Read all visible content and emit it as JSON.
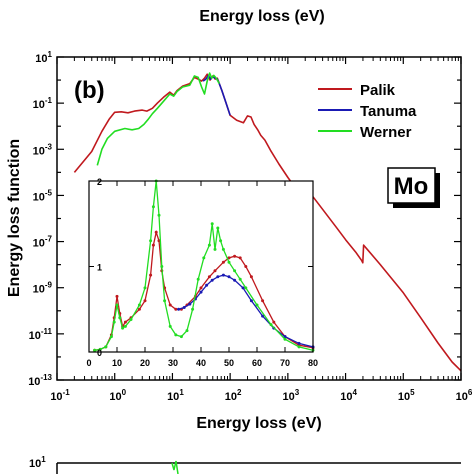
{
  "top_fragment": {
    "xlabel": "Energy loss (eV)"
  },
  "chart_data": {
    "type": "line",
    "title": "",
    "panel_label": "(b)",
    "element_label": "Mo",
    "xlabel": "Energy loss (eV)",
    "ylabel": "Energy loss function",
    "xscale": "log",
    "yscale": "log",
    "xlim": [
      0.1,
      1000000
    ],
    "ylim": [
      1e-13,
      10
    ],
    "x_ticks": [
      {
        "value": 0.1,
        "base": "10",
        "exp": "-1"
      },
      {
        "value": 1,
        "base": "10",
        "exp": "0"
      },
      {
        "value": 10,
        "base": "10",
        "exp": "1"
      },
      {
        "value": 100,
        "base": "10",
        "exp": "2"
      },
      {
        "value": 1000,
        "base": "10",
        "exp": "3"
      },
      {
        "value": 10000,
        "base": "10",
        "exp": "4"
      },
      {
        "value": 100000,
        "base": "10",
        "exp": "5"
      },
      {
        "value": 1000000,
        "base": "10",
        "exp": "6"
      }
    ],
    "y_ticks": [
      {
        "value": 10,
        "base": "10",
        "exp": "1"
      },
      {
        "value": 0.1,
        "base": "10",
        "exp": "-1"
      },
      {
        "value": 0.001,
        "base": "10",
        "exp": "-3"
      },
      {
        "value": 1e-05,
        "base": "10",
        "exp": "-5"
      },
      {
        "value": 1e-07,
        "base": "10",
        "exp": "-7"
      },
      {
        "value": 1e-09,
        "base": "10",
        "exp": "-9"
      },
      {
        "value": 1e-11,
        "base": "10",
        "exp": "-11"
      },
      {
        "value": 1e-13,
        "base": "10",
        "exp": "-13"
      }
    ],
    "legend_position": "top-right",
    "series": [
      {
        "name": "Palik",
        "color": "#c0191e",
        "x": [
          0.2,
          0.4,
          0.6,
          0.8,
          1,
          1.3,
          1.7,
          2.2,
          3,
          3.6,
          4.5,
          5.5,
          7,
          9,
          10.5,
          12,
          15,
          20,
          24,
          28,
          32,
          36,
          40,
          45,
          50,
          55,
          60,
          65,
          72,
          85,
          100,
          130,
          170,
          200,
          230,
          260,
          300,
          340,
          400,
          500,
          700,
          1000,
          1500,
          2000,
          2400,
          2510,
          2600,
          2800,
          4000,
          7000,
          10000,
          15000,
          19000,
          19900,
          20500,
          25000,
          40000,
          70000,
          100000,
          200000,
          400000,
          700000,
          1000000
        ],
        "y": [
          0.0001,
          0.0008,
          0.006,
          0.02,
          0.04,
          0.042,
          0.038,
          0.045,
          0.05,
          0.045,
          0.06,
          0.1,
          0.18,
          0.3,
          0.22,
          0.35,
          0.55,
          0.7,
          1.3,
          1.1,
          0.9,
          1.2,
          1.8,
          1.0,
          1.5,
          1.1,
          1.2,
          0.7,
          0.35,
          0.1,
          0.03,
          0.018,
          0.014,
          0.028,
          0.025,
          0.012,
          0.007,
          0.004,
          0.0025,
          0.0009,
          0.00023,
          6e-05,
          1.5e-05,
          6e-06,
          3e-06,
          2e-06,
          1e-05,
          8e-06,
          2.5e-06,
          4e-07,
          1.2e-07,
          3.5e-08,
          1.5e-08,
          1.2e-08,
          7e-08,
          4e-08,
          1e-08,
          1.8e-09,
          6e-10,
          5e-11,
          4e-12,
          6e-13,
          2.5e-13
        ]
      },
      {
        "name": "Tanuma",
        "color": "#1a1ab4",
        "x": [
          34,
          38,
          42,
          46,
          50,
          55,
          60,
          65,
          72,
          85,
          100
        ],
        "y": [
          0.9,
          1.1,
          1.6,
          1.1,
          1.4,
          1.2,
          1.1,
          0.7,
          0.35,
          0.1,
          0.03
        ]
      },
      {
        "name": "Werner",
        "color": "#22dd22",
        "x": [
          0.5,
          0.6,
          0.75,
          1,
          1.5,
          2,
          2.6,
          3.2,
          3.8,
          4.5,
          5.5,
          7,
          9,
          10.5,
          12,
          15,
          20,
          24,
          28,
          32,
          36,
          40,
          44,
          48,
          52,
          56,
          60,
          65
        ],
        "y": [
          0.0002,
          0.001,
          0.003,
          0.006,
          0.008,
          0.007,
          0.008,
          0.012,
          0.02,
          0.035,
          0.06,
          0.12,
          0.25,
          0.2,
          0.32,
          0.5,
          0.6,
          1.5,
          1.3,
          0.5,
          0.25,
          0.9,
          2.0,
          1.2,
          1.6,
          1.3,
          1.0,
          0.7
        ]
      }
    ],
    "inset": {
      "xlim": [
        0,
        80
      ],
      "ylim": [
        0,
        2
      ],
      "x_ticks": [
        "0",
        "10",
        "20",
        "30",
        "40",
        "50",
        "60",
        "70",
        "80"
      ],
      "y_ticks": [
        "0",
        "1",
        "2"
      ],
      "series": [
        {
          "name": "Palik",
          "color": "#c0191e",
          "x": [
            2,
            4,
            6,
            8,
            9,
            10,
            11,
            12,
            13,
            15,
            18,
            20,
            22,
            23,
            24,
            25,
            26,
            27,
            29,
            31,
            33,
            35,
            38,
            40,
            43,
            45,
            48,
            50,
            52,
            54,
            56,
            58,
            62,
            66,
            70,
            75,
            80
          ],
          "y": [
            0.02,
            0.03,
            0.06,
            0.2,
            0.4,
            0.65,
            0.45,
            0.3,
            0.35,
            0.4,
            0.5,
            0.6,
            0.9,
            1.25,
            1.4,
            1.3,
            0.95,
            0.75,
            0.55,
            0.5,
            0.5,
            0.55,
            0.65,
            0.75,
            0.88,
            0.95,
            1.05,
            1.1,
            1.12,
            1.1,
            1.0,
            0.88,
            0.6,
            0.35,
            0.18,
            0.08,
            0.05
          ]
        },
        {
          "name": "Tanuma",
          "color": "#1a1ab4",
          "x": [
            32,
            34,
            36,
            38,
            40,
            42,
            44,
            46,
            48,
            50,
            52,
            55,
            58,
            62,
            66,
            70,
            75,
            80
          ],
          "y": [
            0.5,
            0.52,
            0.56,
            0.62,
            0.7,
            0.78,
            0.84,
            0.88,
            0.9,
            0.88,
            0.84,
            0.75,
            0.6,
            0.42,
            0.28,
            0.18,
            0.1,
            0.06
          ]
        },
        {
          "name": "Werner",
          "color": "#22dd22",
          "x": [
            2,
            4,
            6,
            8,
            9,
            10,
            11,
            12,
            13,
            15,
            18,
            20,
            22,
            23,
            24,
            25,
            26,
            27,
            29,
            31,
            33,
            35,
            37,
            39,
            41,
            43,
            44,
            45,
            46,
            47,
            48,
            50,
            52,
            54,
            56,
            60,
            65,
            70,
            75,
            80
          ],
          "y": [
            0.02,
            0.03,
            0.06,
            0.18,
            0.35,
            0.55,
            0.4,
            0.28,
            0.3,
            0.38,
            0.55,
            0.75,
            1.3,
            1.7,
            2.0,
            1.6,
            1.0,
            0.6,
            0.3,
            0.2,
            0.18,
            0.25,
            0.5,
            0.85,
            1.1,
            1.25,
            1.5,
            1.2,
            1.45,
            1.3,
            1.2,
            1.05,
            0.95,
            0.85,
            0.75,
            0.55,
            0.32,
            0.15,
            0.06,
            0.02
          ]
        }
      ]
    }
  },
  "bottom_fragment": {
    "y_tick": {
      "base": "10",
      "exp": "1"
    }
  }
}
